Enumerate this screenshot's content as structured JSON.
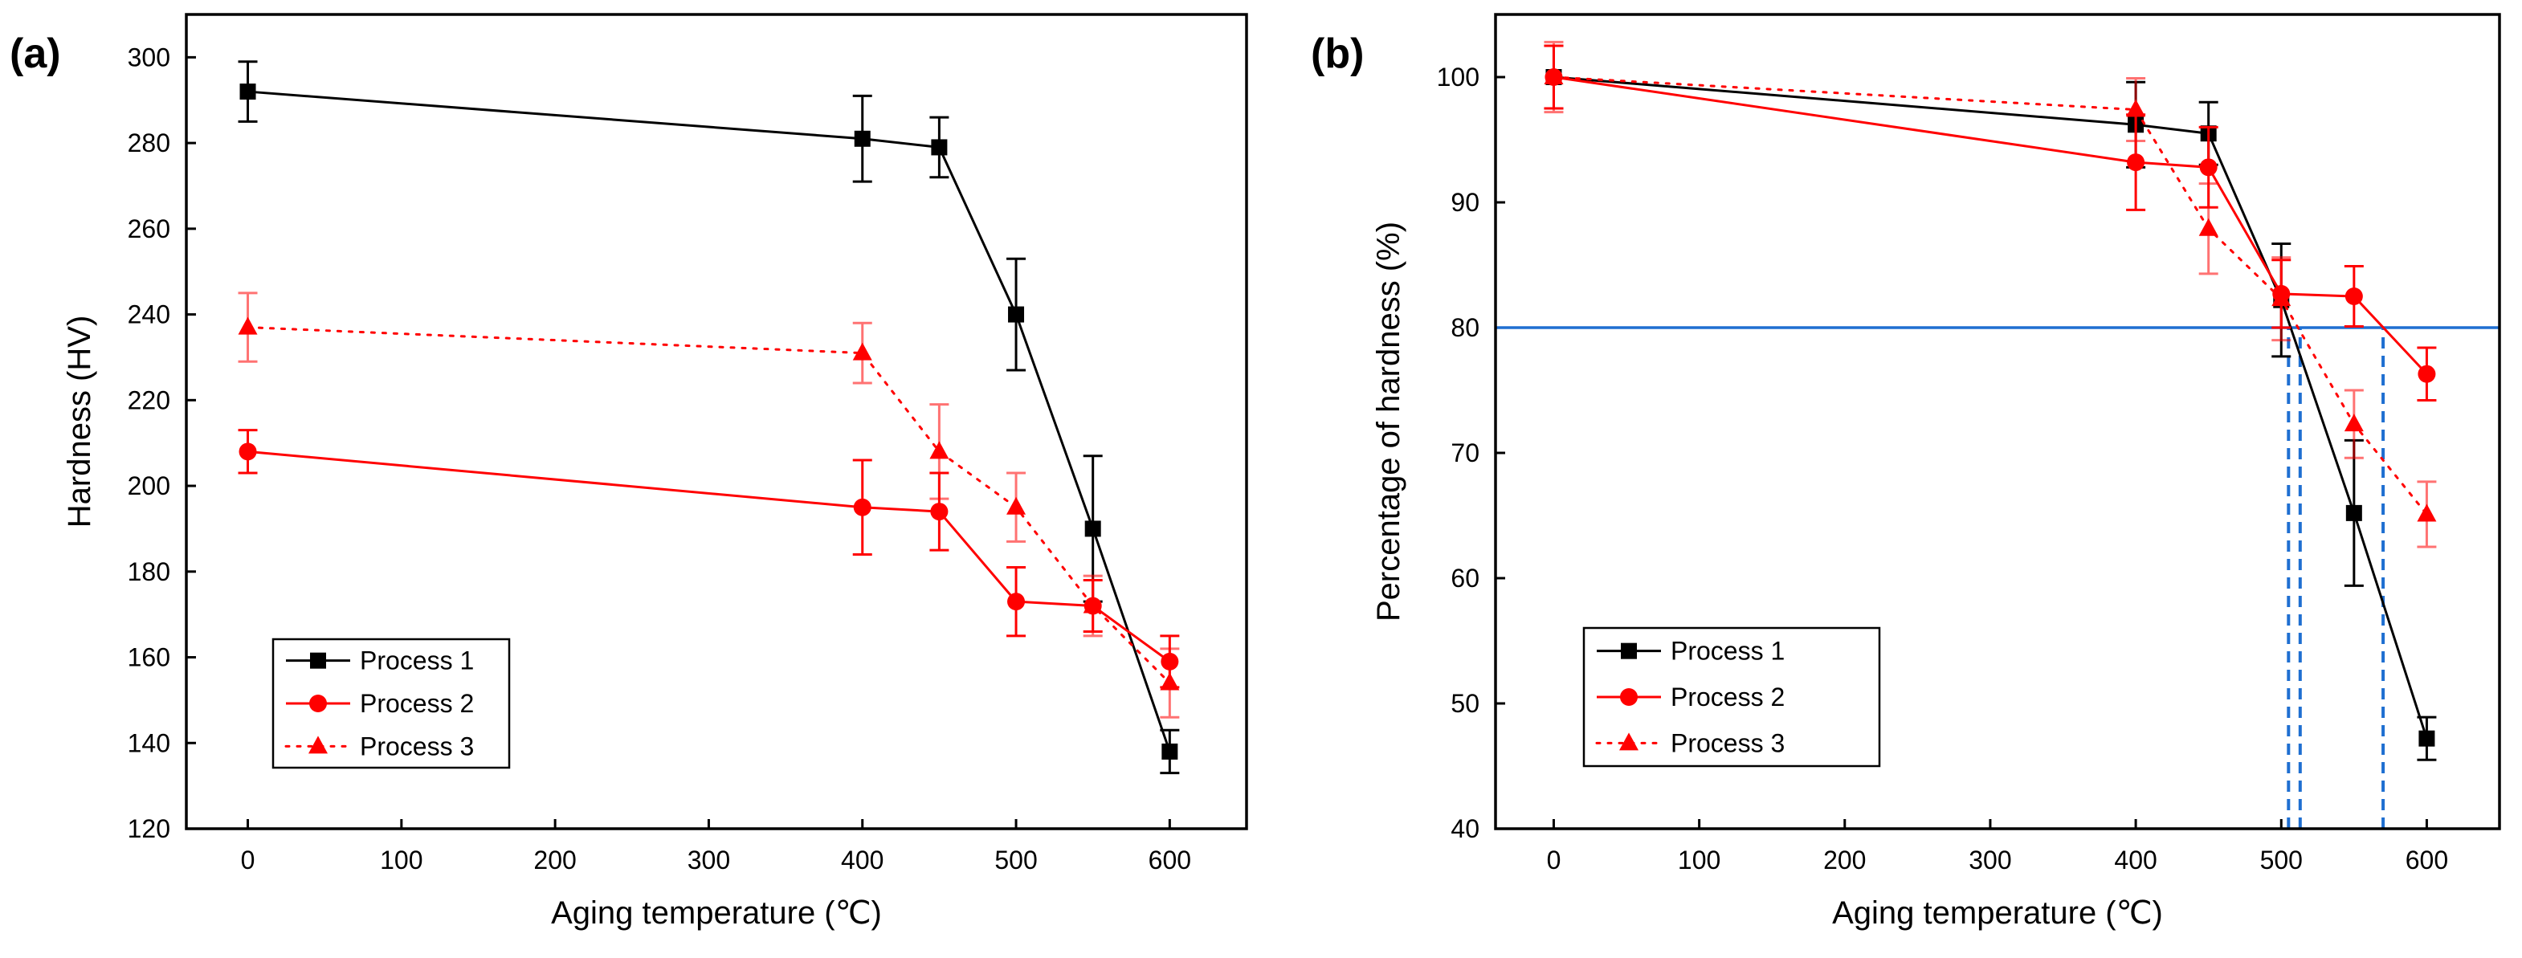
{
  "chart_data": [
    {
      "panel": "(a)",
      "type": "line",
      "xlabel": "Aging temperature (℃)",
      "ylabel": "Hardness (HV)",
      "xlim": [
        -40,
        650
      ],
      "ylim": [
        120,
        310
      ],
      "xticks": [
        0,
        100,
        200,
        300,
        400,
        500,
        600
      ],
      "yticks": [
        120,
        140,
        160,
        180,
        200,
        220,
        240,
        260,
        280,
        300
      ],
      "legend_position": "bottom-left",
      "series": [
        {
          "name": "Process 1",
          "color": "#000000",
          "marker": "square",
          "linestyle": "solid",
          "x": [
            0,
            400,
            450,
            500,
            550,
            600
          ],
          "y": [
            292,
            281,
            279,
            240,
            190,
            138
          ],
          "err": [
            7,
            10,
            7,
            13,
            17,
            5
          ]
        },
        {
          "name": "Process 2",
          "color": "#ff0000",
          "marker": "circle",
          "linestyle": "solid",
          "x": [
            0,
            400,
            450,
            500,
            550,
            600
          ],
          "y": [
            208,
            195,
            194,
            173,
            172,
            159
          ],
          "err": [
            5,
            11,
            9,
            8,
            6,
            6
          ]
        },
        {
          "name": "Process 3",
          "color": "#ff0000",
          "marker": "triangle",
          "linestyle": "dotted",
          "x": [
            0,
            400,
            450,
            500,
            550,
            600
          ],
          "y": [
            237,
            231,
            208,
            195,
            172,
            154
          ],
          "err": [
            8,
            7,
            11,
            8,
            7,
            8
          ]
        }
      ],
      "reference_lines": []
    },
    {
      "panel": "(b)",
      "type": "line",
      "xlabel": "Aging temperature (℃)",
      "ylabel": "Percentage of hardness (%)",
      "xlim": [
        -40,
        650
      ],
      "ylim": [
        40,
        105
      ],
      "xticks": [
        0,
        100,
        200,
        300,
        400,
        500,
        600
      ],
      "yticks": [
        40,
        50,
        60,
        70,
        80,
        90,
        100
      ],
      "legend_position": "bottom-left",
      "series": [
        {
          "name": "Process 1",
          "color": "#000000",
          "marker": "square",
          "linestyle": "solid",
          "x": [
            0,
            400,
            450,
            500,
            550,
            600
          ],
          "y": [
            100,
            96.2,
            95.5,
            82.2,
            65.2,
            47.2
          ],
          "err": [
            2.5,
            3.4,
            2.5,
            4.5,
            5.8,
            1.7
          ]
        },
        {
          "name": "Process 2",
          "color": "#ff0000",
          "marker": "circle",
          "linestyle": "solid",
          "x": [
            0,
            400,
            450,
            500,
            550,
            600
          ],
          "y": [
            100,
            93.2,
            92.8,
            82.7,
            82.5,
            76.3
          ],
          "err": [
            2.5,
            3.8,
            3.2,
            2.7,
            2.4,
            2.1
          ]
        },
        {
          "name": "Process 3",
          "color": "#ff0000",
          "marker": "triangle",
          "linestyle": "dotted",
          "x": [
            0,
            400,
            450,
            500,
            550,
            600
          ],
          "y": [
            100,
            97.4,
            87.9,
            82.3,
            72.3,
            65.1
          ],
          "err": [
            2.8,
            2.5,
            3.6,
            3.3,
            2.7,
            2.6
          ]
        }
      ],
      "reference_lines": [
        {
          "orientation": "horizontal",
          "value": 80,
          "color": "#1f6fd1",
          "style": "solid"
        },
        {
          "orientation": "vertical",
          "value": 505,
          "from": 40,
          "to": 80,
          "color": "#1f6fd1",
          "style": "dashed"
        },
        {
          "orientation": "vertical",
          "value": 513,
          "from": 40,
          "to": 80,
          "color": "#1f6fd1",
          "style": "dashed"
        },
        {
          "orientation": "vertical",
          "value": 570,
          "from": 40,
          "to": 80,
          "color": "#1f6fd1",
          "style": "dashed"
        }
      ]
    }
  ]
}
